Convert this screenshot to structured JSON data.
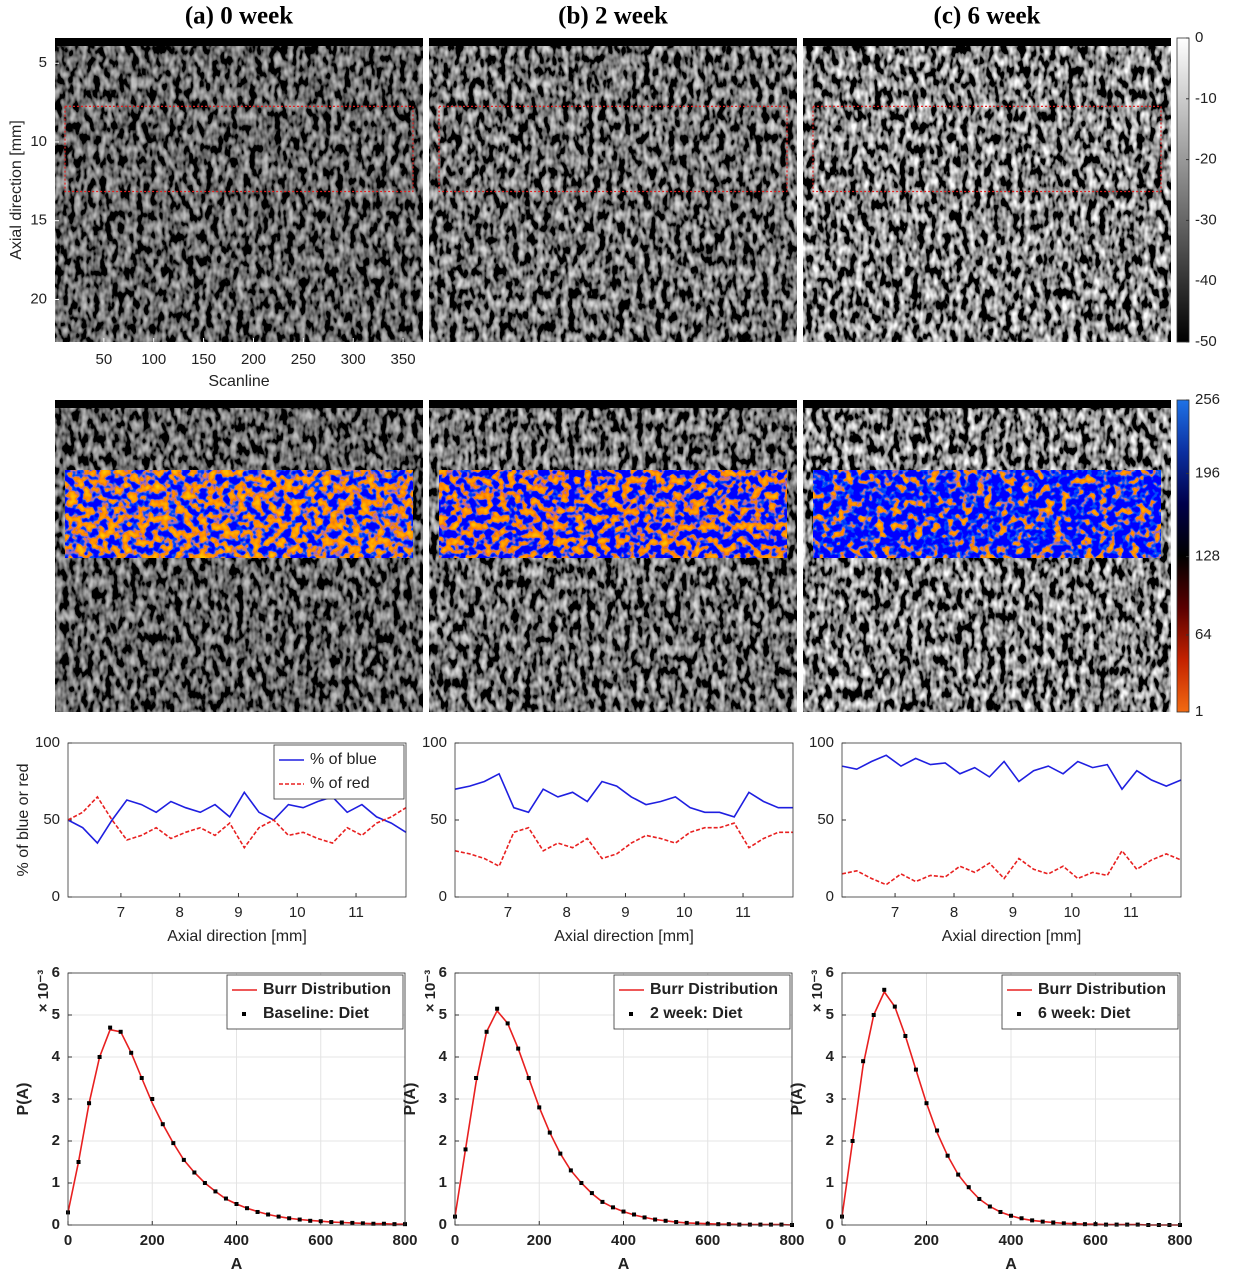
{
  "chart_data": [
    {
      "type": "image",
      "title": "(a) 0 week",
      "xlabel": "Scanline",
      "ylabel": "Axial direction [mm]",
      "xlim": [
        1,
        370
      ],
      "ylim": [
        22.7,
        3.4
      ],
      "xticks": [
        50,
        100,
        150,
        200,
        250,
        300,
        350
      ],
      "yticks": [
        5,
        10,
        15,
        20
      ]
    },
    {
      "type": "image",
      "title": "(b) 2 week"
    },
    {
      "type": "image",
      "title": "(c) 6 week"
    },
    {
      "type": "colorbar",
      "ylim": [
        -50,
        0
      ],
      "yticks": [
        0,
        -10,
        -20,
        -30,
        -40,
        -50
      ],
      "colormap": [
        "#000000",
        "#ffffff"
      ]
    },
    {
      "type": "image",
      "overlay": true
    },
    {
      "type": "image",
      "overlay": true
    },
    {
      "type": "image",
      "overlay": true
    },
    {
      "type": "colorbar",
      "ylim": [
        1,
        256
      ],
      "yticks": [
        1,
        64,
        128,
        196,
        256
      ],
      "colormap": [
        "#f26a12",
        "#c42200",
        "#5a0000",
        "#000000",
        "#00004a",
        "#0b2fa0",
        "#1f72e6"
      ]
    },
    {
      "type": "line",
      "xlabel": "Axial direction [mm]",
      "ylabel": "% of blue or red",
      "xlim": [
        6.1,
        11.85
      ],
      "ylim": [
        0,
        100
      ],
      "xticks": [
        7,
        8,
        9,
        10,
        11
      ],
      "yticks": [
        0,
        50,
        100
      ],
      "legend": "upper right",
      "x": [
        6.1,
        6.35,
        6.6,
        6.85,
        7.1,
        7.35,
        7.6,
        7.85,
        8.1,
        8.35,
        8.6,
        8.85,
        9.1,
        9.35,
        9.6,
        9.85,
        10.1,
        10.35,
        10.6,
        10.85,
        11.1,
        11.35,
        11.6,
        11.85
      ],
      "series": [
        {
          "name": "% of blue",
          "color": "#1f1fe0",
          "values": [
            50,
            45,
            35,
            50,
            63,
            60,
            55,
            62,
            58,
            55,
            60,
            52,
            68,
            55,
            50,
            60,
            58,
            62,
            65,
            55,
            60,
            52,
            48,
            42
          ]
        },
        {
          "name": "% of red",
          "color": "#e82020",
          "linestyle": "--",
          "values": [
            50,
            55,
            65,
            50,
            37,
            40,
            45,
            38,
            42,
            45,
            40,
            48,
            32,
            45,
            50,
            40,
            42,
            38,
            35,
            45,
            40,
            48,
            52,
            58
          ]
        }
      ]
    },
    {
      "type": "line",
      "xlabel": "Axial direction [mm]",
      "xlim": [
        6.1,
        11.85
      ],
      "ylim": [
        0,
        100
      ],
      "xticks": [
        7,
        8,
        9,
        10,
        11
      ],
      "yticks": [
        0,
        50,
        100
      ],
      "x": [
        6.1,
        6.35,
        6.6,
        6.85,
        7.1,
        7.35,
        7.6,
        7.85,
        8.1,
        8.35,
        8.6,
        8.85,
        9.1,
        9.35,
        9.6,
        9.85,
        10.1,
        10.35,
        10.6,
        10.85,
        11.1,
        11.35,
        11.6,
        11.85
      ],
      "series": [
        {
          "color": "#1f1fe0",
          "values": [
            70,
            72,
            75,
            80,
            58,
            55,
            70,
            65,
            68,
            62,
            75,
            72,
            65,
            60,
            62,
            65,
            58,
            55,
            55,
            52,
            68,
            62,
            58,
            58
          ]
        },
        {
          "color": "#e82020",
          "linestyle": "--",
          "values": [
            30,
            28,
            25,
            20,
            42,
            45,
            30,
            35,
            32,
            38,
            25,
            28,
            35,
            40,
            38,
            35,
            42,
            45,
            45,
            48,
            32,
            38,
            42,
            42
          ]
        }
      ]
    },
    {
      "type": "line",
      "xlabel": "Axial direction [mm]",
      "xlim": [
        6.1,
        11.85
      ],
      "ylim": [
        0,
        100
      ],
      "xticks": [
        7,
        8,
        9,
        10,
        11
      ],
      "yticks": [
        0,
        50,
        100
      ],
      "x": [
        6.1,
        6.35,
        6.6,
        6.85,
        7.1,
        7.35,
        7.6,
        7.85,
        8.1,
        8.35,
        8.6,
        8.85,
        9.1,
        9.35,
        9.6,
        9.85,
        10.1,
        10.35,
        10.6,
        10.85,
        11.1,
        11.35,
        11.6,
        11.85
      ],
      "series": [
        {
          "color": "#1f1fe0",
          "values": [
            85,
            83,
            88,
            92,
            85,
            90,
            86,
            87,
            80,
            84,
            78,
            88,
            75,
            82,
            85,
            80,
            88,
            84,
            86,
            70,
            82,
            76,
            72,
            76
          ]
        },
        {
          "color": "#e82020",
          "linestyle": "--",
          "values": [
            15,
            17,
            12,
            8,
            15,
            10,
            14,
            13,
            20,
            16,
            22,
            12,
            25,
            18,
            15,
            20,
            12,
            16,
            14,
            30,
            18,
            24,
            28,
            24
          ]
        }
      ]
    },
    {
      "type": "line",
      "xlabel": "A",
      "ylabel": "P(A)",
      "y_multiplier": "× 10⁻³",
      "bold": true,
      "grid": true,
      "legend": "upper right",
      "xlim": [
        0,
        800
      ],
      "ylim": [
        0,
        6
      ],
      "xticks": [
        0,
        200,
        400,
        600,
        800
      ],
      "yticks": [
        0,
        1,
        2,
        3,
        4,
        5,
        6
      ],
      "x": [
        0,
        25,
        50,
        75,
        100,
        125,
        150,
        175,
        200,
        225,
        250,
        275,
        300,
        325,
        350,
        375,
        400,
        425,
        450,
        475,
        500,
        525,
        550,
        575,
        600,
        625,
        650,
        675,
        700,
        725,
        750,
        775,
        800
      ],
      "series": [
        {
          "name": "Burr Distribution",
          "color": "#e82020",
          "values": [
            0.3,
            1.5,
            2.9,
            4.0,
            4.65,
            4.6,
            4.1,
            3.5,
            2.9,
            2.4,
            1.95,
            1.55,
            1.25,
            1.0,
            0.8,
            0.62,
            0.5,
            0.4,
            0.32,
            0.25,
            0.2,
            0.16,
            0.13,
            0.11,
            0.09,
            0.07,
            0.06,
            0.05,
            0.04,
            0.03,
            0.03,
            0.02,
            0.02
          ]
        },
        {
          "name": "Baseline: Diet",
          "color": "#000000",
          "marker": "s",
          "values": [
            0.3,
            1.5,
            2.9,
            4.0,
            4.7,
            4.6,
            4.1,
            3.5,
            3.0,
            2.4,
            1.95,
            1.55,
            1.25,
            1.0,
            0.8,
            0.63,
            0.5,
            0.4,
            0.31,
            0.25,
            0.2,
            0.16,
            0.13,
            0.1,
            0.09,
            0.07,
            0.06,
            0.05,
            0.04,
            0.03,
            0.03,
            0.02,
            0.02
          ]
        }
      ]
    },
    {
      "type": "line",
      "xlabel": "A",
      "ylabel": "P(A)",
      "y_multiplier": "× 10⁻³",
      "bold": true,
      "grid": true,
      "legend": "upper right",
      "xlim": [
        0,
        800
      ],
      "ylim": [
        0,
        6
      ],
      "xticks": [
        0,
        200,
        400,
        600,
        800
      ],
      "yticks": [
        0,
        1,
        2,
        3,
        4,
        5,
        6
      ],
      "x": [
        0,
        25,
        50,
        75,
        100,
        125,
        150,
        175,
        200,
        225,
        250,
        275,
        300,
        325,
        350,
        375,
        400,
        425,
        450,
        475,
        500,
        525,
        550,
        575,
        600,
        625,
        650,
        675,
        700,
        725,
        750,
        775,
        800
      ],
      "series": [
        {
          "name": "Burr Distribution",
          "color": "#e82020",
          "values": [
            0.2,
            1.8,
            3.4,
            4.6,
            5.1,
            4.8,
            4.2,
            3.5,
            2.8,
            2.2,
            1.7,
            1.3,
            1.0,
            0.75,
            0.55,
            0.42,
            0.32,
            0.24,
            0.18,
            0.13,
            0.1,
            0.07,
            0.05,
            0.04,
            0.03,
            0.02,
            0.02,
            0.01,
            0.01,
            0.01,
            0.01,
            0.01,
            0
          ]
        },
        {
          "name": "2 week: Diet",
          "color": "#000000",
          "marker": "s",
          "values": [
            0.2,
            1.8,
            3.5,
            4.6,
            5.15,
            4.8,
            4.2,
            3.5,
            2.8,
            2.2,
            1.7,
            1.3,
            1.0,
            0.76,
            0.55,
            0.42,
            0.32,
            0.25,
            0.18,
            0.13,
            0.1,
            0.07,
            0.05,
            0.04,
            0.03,
            0.02,
            0.02,
            0.01,
            0.01,
            0.01,
            0.01,
            0.01,
            0
          ]
        }
      ]
    },
    {
      "type": "line",
      "xlabel": "A",
      "ylabel": "P(A)",
      "y_multiplier": "× 10⁻³",
      "bold": true,
      "grid": true,
      "legend": "upper right",
      "xlim": [
        0,
        800
      ],
      "ylim": [
        0,
        6
      ],
      "xticks": [
        0,
        200,
        400,
        600,
        800
      ],
      "yticks": [
        0,
        1,
        2,
        3,
        4,
        5,
        6
      ],
      "x": [
        0,
        25,
        50,
        75,
        100,
        125,
        150,
        175,
        200,
        225,
        250,
        275,
        300,
        325,
        350,
        375,
        400,
        425,
        450,
        475,
        500,
        525,
        550,
        575,
        600,
        625,
        650,
        675,
        700,
        725,
        750,
        775,
        800
      ],
      "series": [
        {
          "name": "Burr Distribution",
          "color": "#e82020",
          "values": [
            0.2,
            2.0,
            3.8,
            5.0,
            5.55,
            5.2,
            4.5,
            3.7,
            2.9,
            2.2,
            1.65,
            1.2,
            0.88,
            0.62,
            0.44,
            0.31,
            0.22,
            0.15,
            0.11,
            0.08,
            0.06,
            0.04,
            0.03,
            0.02,
            0.02,
            0.01,
            0.01,
            0.01,
            0.01,
            0,
            0,
            0,
            0
          ]
        },
        {
          "name": "6 week: Diet",
          "color": "#000000",
          "marker": "s",
          "values": [
            0.2,
            2.0,
            3.9,
            5.0,
            5.6,
            5.2,
            4.5,
            3.7,
            2.9,
            2.25,
            1.65,
            1.2,
            0.9,
            0.62,
            0.44,
            0.31,
            0.22,
            0.16,
            0.11,
            0.08,
            0.06,
            0.04,
            0.03,
            0.02,
            0.02,
            0.01,
            0.01,
            0.01,
            0.01,
            0,
            0,
            0,
            0
          ]
        }
      ]
    }
  ]
}
